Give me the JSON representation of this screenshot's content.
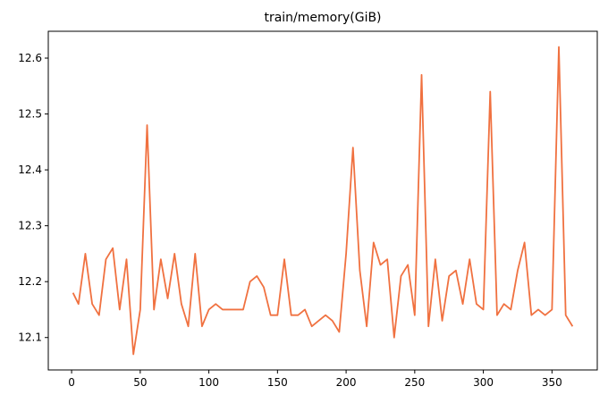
{
  "chart_data": {
    "type": "line",
    "title": "train/memory(GiB)",
    "xlabel": "",
    "ylabel": "",
    "xlim": [
      -17,
      383
    ],
    "ylim": [
      12.042,
      12.648
    ],
    "xticks": [
      0,
      50,
      100,
      150,
      200,
      250,
      300,
      350
    ],
    "yticks": [
      12.1,
      12.2,
      12.3,
      12.4,
      12.5,
      12.6
    ],
    "grid": false,
    "series": [
      {
        "color": "#f07140",
        "x": [
          1,
          5,
          10,
          15,
          20,
          25,
          30,
          35,
          40,
          45,
          50,
          55,
          60,
          65,
          70,
          75,
          80,
          85,
          90,
          95,
          100,
          105,
          110,
          115,
          120,
          125,
          130,
          135,
          140,
          145,
          150,
          155,
          160,
          165,
          170,
          175,
          180,
          185,
          190,
          195,
          200,
          205,
          210,
          215,
          220,
          225,
          230,
          235,
          240,
          245,
          250,
          255,
          260,
          265,
          270,
          275,
          280,
          285,
          290,
          295,
          300,
          305,
          310,
          315,
          320,
          325,
          330,
          335,
          340,
          345,
          350,
          355,
          360,
          365
        ],
        "y": [
          12.18,
          12.16,
          12.25,
          12.16,
          12.14,
          12.24,
          12.26,
          12.15,
          12.24,
          12.07,
          12.15,
          12.48,
          12.15,
          12.24,
          12.17,
          12.25,
          12.16,
          12.12,
          12.25,
          12.12,
          12.15,
          12.16,
          12.15,
          12.15,
          12.15,
          12.15,
          12.2,
          12.21,
          12.19,
          12.14,
          12.14,
          12.24,
          12.14,
          12.14,
          12.15,
          12.12,
          12.13,
          12.14,
          12.13,
          12.11,
          12.25,
          12.44,
          12.22,
          12.12,
          12.27,
          12.23,
          12.24,
          12.1,
          12.21,
          12.23,
          12.14,
          12.57,
          12.12,
          12.24,
          12.13,
          12.21,
          12.22,
          12.16,
          12.24,
          12.16,
          12.15,
          12.54,
          12.14,
          12.16,
          12.15,
          12.22,
          12.27,
          12.14,
          12.15,
          12.14,
          12.15,
          12.62,
          12.14,
          12.12
        ]
      }
    ]
  }
}
